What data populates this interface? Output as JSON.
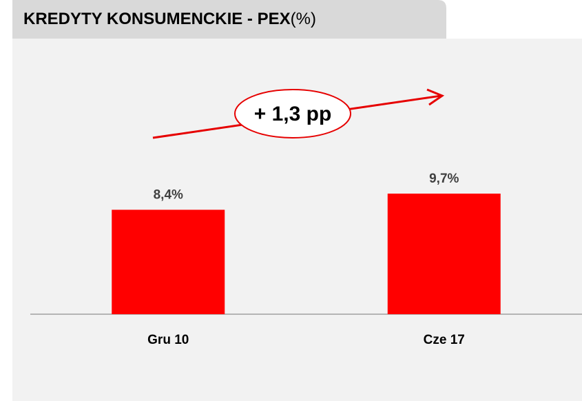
{
  "chart_data": {
    "type": "bar",
    "title": "KREDYTY KONSUMENCKIE - PEX",
    "unit": "(%)",
    "annotation": "+ 1,3 pp",
    "categories": [
      "Gru 10",
      "Cze 17"
    ],
    "values": [
      8.4,
      9.7
    ],
    "value_labels": [
      "8,4%",
      "9,7%"
    ],
    "color": "#ff0000"
  }
}
